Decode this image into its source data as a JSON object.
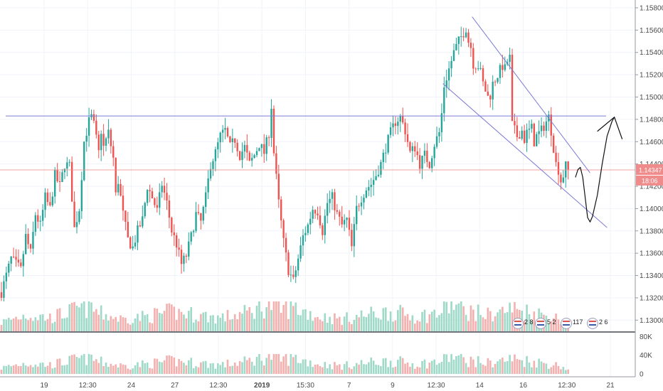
{
  "colors": {
    "up": "#26a69a",
    "down": "#ef5350",
    "up_vol": "#9fd9c7",
    "down_vol": "#f3b0ae",
    "trend": "#7b7bd6",
    "price_line": "#f08b8b",
    "grid": "#f0f3fa",
    "axis_text": "#4a4a4a"
  },
  "price_badge": {
    "value": "1.14347",
    "countdown": "18:06"
  },
  "events": [
    {
      "label": "2 8",
      "icon": "us-eu-flag-icon"
    },
    {
      "label": "5 2",
      "icon": "us-eu-flag-icon"
    },
    {
      "label": "117",
      "icon": "us-flag-icon"
    },
    {
      "label": "2 6",
      "icon": "eu-flag-icon"
    }
  ],
  "chart_data": [
    {
      "type": "candlestick",
      "title": "",
      "ylim": [
        1.129,
        1.1587
      ],
      "y_ticks": [
        "1.15800",
        "1.15600",
        "1.15400",
        "1.15200",
        "1.15000",
        "1.14800",
        "1.14600",
        "1.14400",
        "1.14200",
        "1.14000",
        "1.13800",
        "1.13600",
        "1.13400",
        "1.13200",
        "1.13000"
      ],
      "x_ticks": [
        {
          "label": "19",
          "bold": false
        },
        {
          "label": "12:30",
          "bold": false
        },
        {
          "label": "24",
          "bold": false
        },
        {
          "label": "27",
          "bold": false
        },
        {
          "label": "12:30",
          "bold": false
        },
        {
          "label": "2019",
          "bold": true
        },
        {
          "label": "15:30",
          "bold": false
        },
        {
          "label": "7",
          "bold": false
        },
        {
          "label": "9",
          "bold": false
        },
        {
          "label": "12:30",
          "bold": false
        },
        {
          "label": "14",
          "bold": false
        },
        {
          "label": "16",
          "bold": false
        },
        {
          "label": "12:30",
          "bold": false
        },
        {
          "label": "21",
          "bold": false
        }
      ],
      "close_path": [
        [
          0,
          1.1325
        ],
        [
          2,
          1.134
        ],
        [
          4,
          1.1355
        ],
        [
          6,
          1.135
        ],
        [
          8,
          1.1345
        ],
        [
          10,
          1.1375
        ],
        [
          12,
          1.136
        ],
        [
          14,
          1.1395
        ],
        [
          16,
          1.1385
        ],
        [
          18,
          1.141
        ],
        [
          20,
          1.14
        ],
        [
          22,
          1.143
        ],
        [
          24,
          1.142
        ],
        [
          26,
          1.144
        ],
        [
          28,
          1.1438
        ],
        [
          30,
          1.1382
        ],
        [
          32,
          1.14
        ],
        [
          34,
          1.146
        ],
        [
          36,
          1.1478
        ],
        [
          37,
          1.1482
        ],
        [
          38,
          1.1475
        ],
        [
          40,
          1.145
        ],
        [
          41,
          1.147
        ],
        [
          42,
          1.1455
        ],
        [
          44,
          1.1468
        ],
        [
          46,
          1.1445
        ],
        [
          47,
          1.1412
        ],
        [
          48,
          1.1425
        ],
        [
          50,
          1.1395
        ],
        [
          52,
          1.1372
        ],
        [
          54,
          1.1365
        ],
        [
          56,
          1.138
        ],
        [
          58,
          1.139
        ],
        [
          60,
          1.142
        ],
        [
          62,
          1.141
        ],
        [
          64,
          1.1398
        ],
        [
          66,
          1.1422
        ],
        [
          68,
          1.1405
        ],
        [
          70,
          1.138
        ],
        [
          72,
          1.1368
        ],
        [
          74,
          1.135
        ],
        [
          76,
          1.1358
        ],
        [
          78,
          1.1375
        ],
        [
          80,
          1.1395
        ],
        [
          82,
          1.1388
        ],
        [
          84,
          1.141
        ],
        [
          86,
          1.144
        ],
        [
          88,
          1.145
        ],
        [
          90,
          1.1465
        ],
        [
          92,
          1.147
        ],
        [
          94,
          1.1455
        ],
        [
          96,
          1.1462
        ],
        [
          98,
          1.1448
        ],
        [
          100,
          1.1455
        ],
        [
          102,
          1.144
        ],
        [
          104,
          1.1448
        ],
        [
          106,
          1.1458
        ],
        [
          108,
          1.145
        ],
        [
          110,
          1.1468
        ],
        [
          111,
          1.1492
        ],
        [
          112,
          1.145
        ],
        [
          114,
          1.1405
        ],
        [
          116,
          1.137
        ],
        [
          118,
          1.1345
        ],
        [
          120,
          1.1335
        ],
        [
          122,
          1.1355
        ],
        [
          124,
          1.1375
        ],
        [
          126,
          1.1385
        ],
        [
          128,
          1.14
        ],
        [
          130,
          1.1398
        ],
        [
          132,
          1.138
        ],
        [
          134,
          1.1405
        ],
        [
          136,
          1.141
        ],
        [
          138,
          1.1395
        ],
        [
          140,
          1.1385
        ],
        [
          142,
          1.139
        ],
        [
          144,
          1.1365
        ],
        [
          146,
          1.14
        ],
        [
          148,
          1.141
        ],
        [
          150,
          1.1418
        ],
        [
          152,
          1.1422
        ],
        [
          154,
          1.143
        ],
        [
          156,
          1.144
        ],
        [
          158,
          1.1455
        ],
        [
          160,
          1.1468
        ],
        [
          162,
          1.1478
        ],
        [
          164,
          1.1482
        ],
        [
          166,
          1.147
        ],
        [
          168,
          1.145
        ],
        [
          170,
          1.1455
        ],
        [
          172,
          1.144
        ],
        [
          174,
          1.1448
        ],
        [
          176,
          1.144
        ],
        [
          178,
          1.1458
        ],
        [
          180,
          1.1468
        ],
        [
          181,
          1.1485
        ],
        [
          182,
          1.151
        ],
        [
          184,
          1.1525
        ],
        [
          186,
          1.154
        ],
        [
          188,
          1.155
        ],
        [
          190,
          1.1558
        ],
        [
          191,
          1.1562
        ],
        [
          192,
          1.155
        ],
        [
          193,
          1.1545
        ],
        [
          194,
          1.153
        ],
        [
          196,
          1.1528
        ],
        [
          197,
          1.1522
        ],
        [
          198,
          1.1512
        ],
        [
          200,
          1.15
        ],
        [
          201,
          1.1502
        ],
        [
          202,
          1.1512
        ],
        [
          204,
          1.152
        ],
        [
          206,
          1.1528
        ],
        [
          207,
          1.1525
        ],
        [
          208,
          1.1532
        ],
        [
          209,
          1.1535
        ],
        [
          210,
          1.1475
        ],
        [
          211,
          1.147
        ],
        [
          212,
          1.1465
        ],
        [
          214,
          1.147
        ],
        [
          215,
          1.1462
        ],
        [
          216,
          1.1468
        ],
        [
          218,
          1.1472
        ],
        [
          219,
          1.146
        ],
        [
          220,
          1.1465
        ],
        [
          222,
          1.147
        ],
        [
          224,
          1.1478
        ],
        [
          225,
          1.1482
        ],
        [
          226,
          1.147
        ],
        [
          228,
          1.144
        ],
        [
          229,
          1.1435
        ],
        [
          230,
          1.1425
        ],
        [
          231,
          1.143
        ],
        [
          232,
          1.1438
        ],
        [
          233,
          1.1434
        ]
      ],
      "volume_path": [
        [
          0,
          0.3
        ],
        [
          10,
          0.55
        ],
        [
          20,
          0.45
        ],
        [
          30,
          0.7
        ],
        [
          36,
          0.85
        ],
        [
          40,
          0.6
        ],
        [
          50,
          0.4
        ],
        [
          60,
          0.5
        ],
        [
          70,
          0.65
        ],
        [
          80,
          0.55
        ],
        [
          90,
          0.45
        ],
        [
          100,
          0.6
        ],
        [
          110,
          0.9
        ],
        [
          115,
          0.75
        ],
        [
          120,
          0.8
        ],
        [
          130,
          0.5
        ],
        [
          140,
          0.4
        ],
        [
          150,
          0.55
        ],
        [
          160,
          0.65
        ],
        [
          170,
          0.5
        ],
        [
          180,
          0.6
        ],
        [
          185,
          0.95
        ],
        [
          190,
          0.7
        ],
        [
          200,
          0.55
        ],
        [
          210,
          0.75
        ],
        [
          220,
          0.6
        ],
        [
          230,
          0.4
        ],
        [
          233,
          0.2
        ]
      ],
      "volume_axis": {
        "labels": [
          "80K",
          "40K",
          "0"
        ],
        "ylim": [
          0,
          85
        ]
      },
      "annotations": {
        "resistance_level": 1.1483,
        "current_price": 1.14347,
        "channel": {
          "upper": [
            [
              193.5,
              1.1572
            ],
            [
              242,
              1.1432
            ]
          ],
          "lower": [
            [
              181.5,
              1.1512
            ],
            [
              249,
              1.1383
            ]
          ]
        }
      }
    }
  ]
}
